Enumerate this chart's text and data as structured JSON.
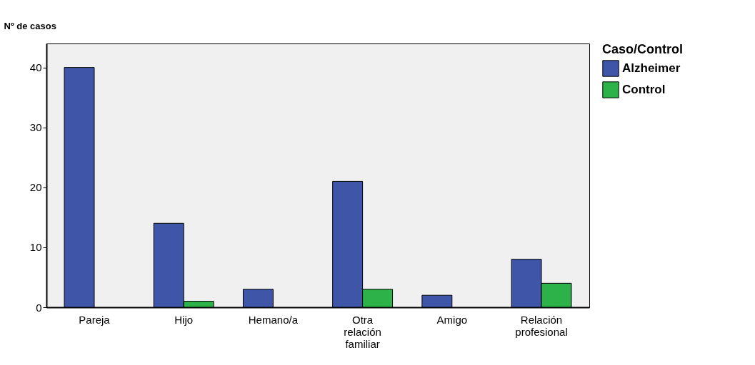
{
  "chart_data": {
    "type": "bar",
    "ylabel": "Nº de casos",
    "legend_title": "Caso/Control",
    "legend": "top right",
    "categories": [
      "Pareja",
      "Hijo",
      "Hemano/a",
      "Otra relación familiar",
      "Amigo",
      "Relación profesional"
    ],
    "series": [
      {
        "name": "Alzheimer",
        "color": "#3f56a8",
        "values": [
          40,
          14,
          3,
          21,
          2,
          8
        ]
      },
      {
        "name": "Control",
        "color": "#2db24a",
        "values": [
          null,
          1,
          null,
          3,
          null,
          4
        ]
      }
    ],
    "ylim": [
      0,
      44
    ],
    "yticks": [
      0,
      10,
      20,
      30,
      40
    ],
    "grid": false
  }
}
